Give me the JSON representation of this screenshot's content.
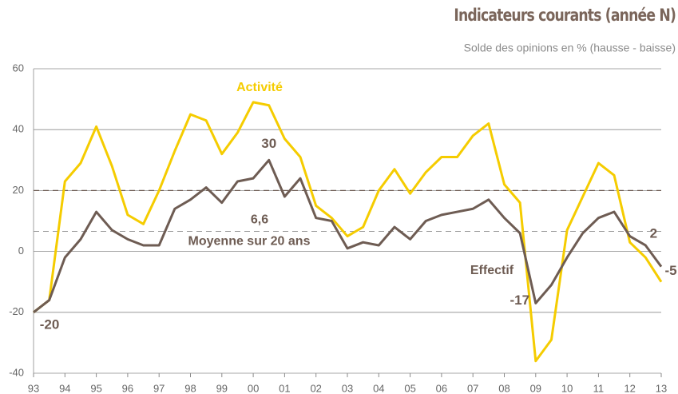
{
  "chart_data": {
    "type": "line",
    "title": "Indicateurs courants (année N)",
    "subtitle": "Solde des opinions en % (hausse - baisse)",
    "x": [
      1993,
      1993.5,
      1994,
      1994.5,
      1995,
      1995.5,
      1996,
      1996.5,
      1997,
      1997.5,
      1998,
      1998.5,
      1999,
      1999.5,
      2000,
      2000.5,
      2001,
      2001.5,
      2002,
      2002.5,
      2003,
      2003.5,
      2004,
      2004.5,
      2005,
      2005.5,
      2006,
      2006.5,
      2007,
      2007.5,
      2008,
      2008.5,
      2009,
      2009.5,
      2010,
      2010.5,
      2011,
      2011.5,
      2012,
      2012.5,
      2013
    ],
    "series": [
      {
        "name": "Activité",
        "color": "#f5cc00",
        "values": [
          -20,
          -16,
          23,
          29,
          41,
          28,
          12,
          9,
          20,
          33,
          45,
          43,
          32,
          39,
          49,
          48,
          37,
          31,
          15,
          11,
          5,
          8,
          20,
          27,
          19,
          26,
          31,
          31,
          38,
          42,
          22,
          16,
          -36,
          -29,
          7,
          18,
          29,
          25,
          3,
          -2,
          -10
        ]
      },
      {
        "name": "Effectif",
        "color": "#6e5c53",
        "values": [
          -20,
          -16,
          -2,
          4,
          13,
          7,
          4,
          2,
          2,
          14,
          17,
          21,
          16,
          23,
          24,
          30,
          18,
          24,
          11,
          10,
          1,
          3,
          2,
          8,
          4,
          10,
          12,
          13,
          14,
          17,
          11,
          6,
          -17,
          -11,
          -2,
          6,
          11,
          13,
          5,
          2,
          -5
        ],
        "labeled": [
          0,
          15,
          32,
          39,
          40
        ]
      }
    ],
    "hlines": [
      {
        "value": 20
      },
      {
        "value": 6.6,
        "label": "6,6",
        "caption": "Moyenne sur 20 ans"
      }
    ],
    "xlim": [
      1993,
      2013
    ],
    "xticks": [
      {
        "value": 1993,
        "label": "93"
      },
      {
        "value": 1994,
        "label": "94"
      },
      {
        "value": 1995,
        "label": "95"
      },
      {
        "value": 1996,
        "label": "96"
      },
      {
        "value": 1997,
        "label": "97"
      },
      {
        "value": 1998,
        "label": "98"
      },
      {
        "value": 1999,
        "label": "99"
      },
      {
        "value": 2000,
        "label": "00"
      },
      {
        "value": 2001,
        "label": "01"
      },
      {
        "value": 2002,
        "label": "02"
      },
      {
        "value": 2003,
        "label": "03"
      },
      {
        "value": 2004,
        "label": "04"
      },
      {
        "value": 2005,
        "label": "05"
      },
      {
        "value": 2006,
        "label": "06"
      },
      {
        "value": 2007,
        "label": "07"
      },
      {
        "value": 2008,
        "label": "08"
      },
      {
        "value": 2009,
        "label": "09"
      },
      {
        "value": 2010,
        "label": "10"
      },
      {
        "value": 2011,
        "label": "11"
      },
      {
        "value": 2012,
        "label": "12"
      },
      {
        "value": 2013,
        "label": "13"
      }
    ],
    "ylim": [
      -40,
      60
    ],
    "yticks": [
      -40,
      -20,
      0,
      20,
      40,
      60
    ],
    "grid": true
  }
}
